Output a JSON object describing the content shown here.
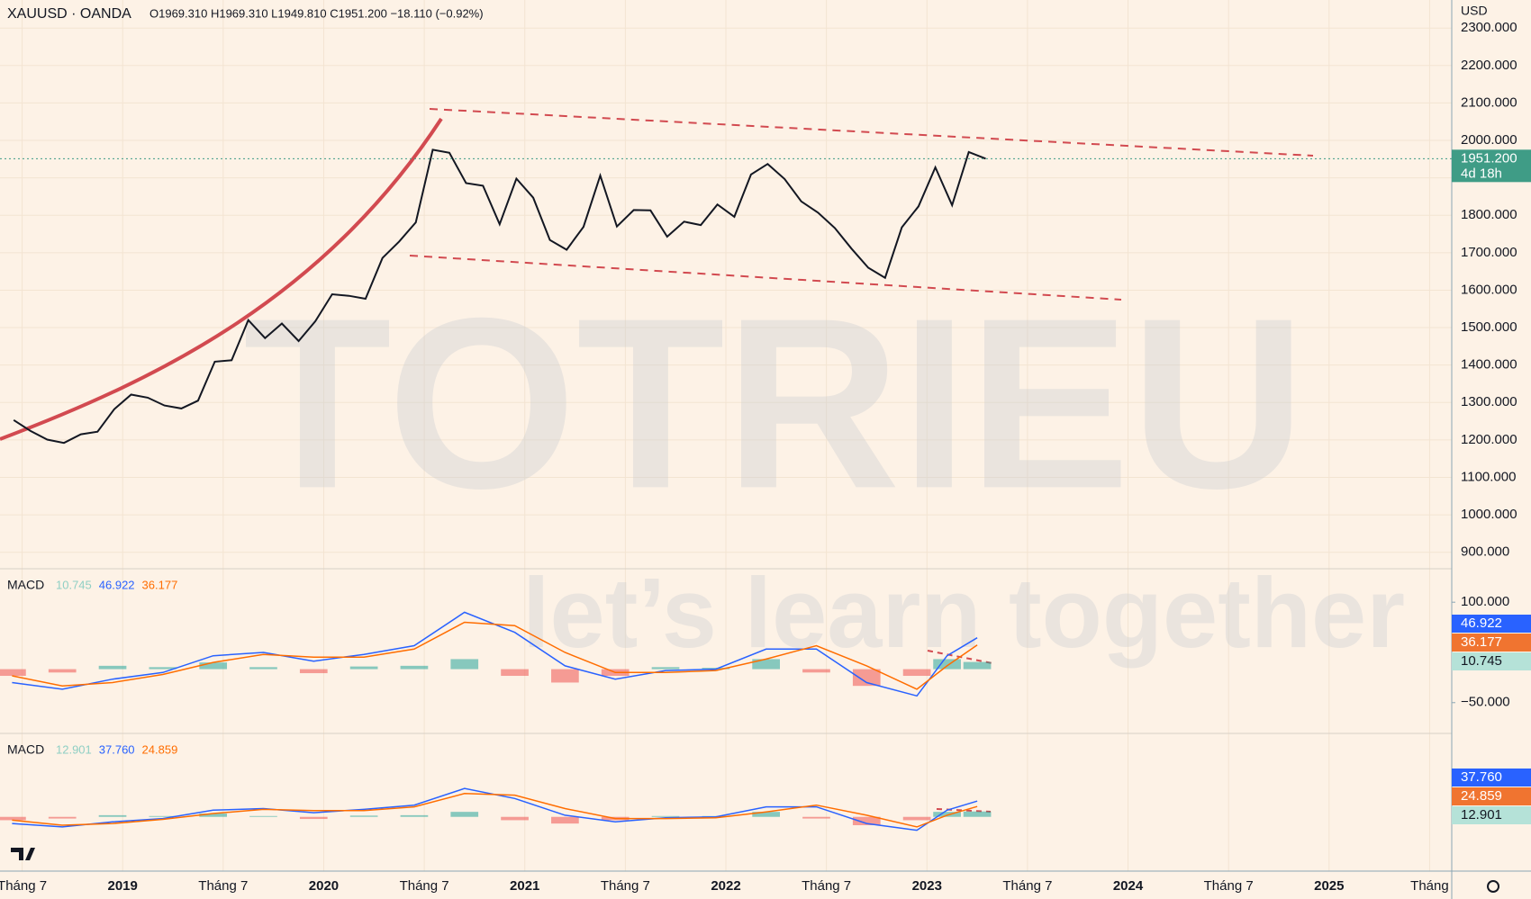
{
  "header": {
    "symbol": "XAUUSD · OANDA",
    "ohlc": "O1969.310 H1969.310 L1949.810 C1951.200 −18.110 (−0.92%)",
    "currency": "USD"
  },
  "watermark": {
    "brand": "TOTRIEU",
    "slogan": "let’s learn together"
  },
  "chart_data": [
    {
      "type": "line",
      "color": "#131722",
      "x": [
        2018.458,
        2018.542,
        2018.625,
        2018.708,
        2018.792,
        2018.875,
        2018.958,
        2019.042,
        2019.125,
        2019.208,
        2019.292,
        2019.375,
        2019.458,
        2019.542,
        2019.625,
        2019.708,
        2019.792,
        2019.875,
        2019.958,
        2020.042,
        2020.125,
        2020.208,
        2020.292,
        2020.375,
        2020.458,
        2020.542,
        2020.625,
        2020.708,
        2020.792,
        2020.875,
        2020.958,
        2021.042,
        2021.125,
        2021.208,
        2021.292,
        2021.375,
        2021.458,
        2021.542,
        2021.625,
        2021.708,
        2021.792,
        2021.875,
        2021.958,
        2022.042,
        2022.125,
        2022.208,
        2022.292,
        2022.375,
        2022.458,
        2022.542,
        2022.625,
        2022.708,
        2022.792,
        2022.875,
        2022.958,
        2023.042,
        2023.125,
        2023.208,
        2023.292
      ],
      "series": [
        {
          "color": "#131722",
          "values": [
            1253,
            1224,
            1201,
            1192,
            1215,
            1222,
            1282,
            1321,
            1313,
            1292,
            1284,
            1305,
            1409,
            1413,
            1520,
            1472,
            1511,
            1464,
            1517,
            1589,
            1585,
            1577,
            1686,
            1730,
            1781,
            1975,
            1967,
            1886,
            1879,
            1776,
            1898,
            1847,
            1734,
            1708,
            1769,
            1906,
            1770,
            1814,
            1813,
            1743,
            1783,
            1774,
            1829,
            1796,
            1909,
            1937,
            1897,
            1837,
            1807,
            1766,
            1711,
            1660,
            1633,
            1768,
            1824,
            1928,
            1827,
            1969,
            1951.2
          ]
        }
      ],
      "xlim": [
        2018.39,
        2025.61
      ],
      "xticks": [
        {
          "value": 2018.5,
          "label": "Tháng 7"
        },
        {
          "value": 2019,
          "label": "2019"
        },
        {
          "value": 2019.5,
          "label": "Tháng 7"
        },
        {
          "value": 2020,
          "label": "2020"
        },
        {
          "value": 2020.5,
          "label": "Tháng 7"
        },
        {
          "value": 2021,
          "label": "2021"
        },
        {
          "value": 2021.5,
          "label": "Tháng 7"
        },
        {
          "value": 2022,
          "label": "2022"
        },
        {
          "value": 2022.5,
          "label": "Tháng 7"
        },
        {
          "value": 2023,
          "label": "2023"
        },
        {
          "value": 2023.5,
          "label": "Tháng 7"
        },
        {
          "value": 2024,
          "label": "2024"
        },
        {
          "value": 2024.5,
          "label": "Tháng 7"
        },
        {
          "value": 2025,
          "label": "2025"
        },
        {
          "value": 2025.5,
          "label": "Tháng"
        }
      ],
      "ylim": [
        856,
        2375
      ],
      "yticks": [
        {
          "value": 900,
          "label": "900.000"
        },
        {
          "value": 1000,
          "label": "1000.000"
        },
        {
          "value": 1100,
          "label": "1100.000"
        },
        {
          "value": 1200,
          "label": "1200.000"
        },
        {
          "value": 1300,
          "label": "1300.000"
        },
        {
          "value": 1400,
          "label": "1400.000"
        },
        {
          "value": 1500,
          "label": "1500.000"
        },
        {
          "value": 1600,
          "label": "1600.000"
        },
        {
          "value": 1700,
          "label": "1700.000"
        },
        {
          "value": 1800,
          "label": "1800.000"
        },
        {
          "value": 1900,
          "label": "1900.000"
        },
        {
          "value": 2000,
          "label": "2000.000"
        },
        {
          "value": 2100,
          "label": "2100.000"
        },
        {
          "value": 2200,
          "label": "2200.000"
        },
        {
          "value": 2300,
          "label": "2300.000"
        }
      ],
      "last_price": {
        "value": 1951.2,
        "label": "1951.200",
        "countdown": "4d 18h",
        "color": "#3f9c86"
      },
      "grid": true
    },
    {
      "type": "macd",
      "title": "MACD",
      "legend_values": [
        "10.745",
        "46.922",
        "36.177"
      ],
      "x": [
        2018.45,
        2018.7,
        2018.95,
        2019.2,
        2019.45,
        2019.7,
        2019.95,
        2020.2,
        2020.45,
        2020.7,
        2020.95,
        2021.2,
        2021.45,
        2021.7,
        2021.95,
        2022.2,
        2022.45,
        2022.7,
        2022.95,
        2023.1,
        2023.25
      ],
      "series": [
        {
          "kind": "histogram",
          "color": "#26a69a",
          "negative_color": "#ef5350",
          "values": [
            -10,
            -5,
            5,
            3,
            10,
            3,
            -6,
            4,
            5,
            15,
            -10,
            -20,
            -10,
            3,
            2,
            15,
            -5,
            -25,
            -10,
            15,
            10.745
          ]
        },
        {
          "kind": "line",
          "color": "#2962ff",
          "values": [
            -20,
            -30,
            -15,
            -5,
            20,
            25,
            12,
            22,
            35,
            85,
            55,
            5,
            -15,
            -2,
            0,
            30,
            30,
            -20,
            -40,
            20,
            46.922
          ]
        },
        {
          "kind": "line",
          "color": "#ff6d00",
          "values": [
            -10,
            -25,
            -20,
            -8,
            10,
            22,
            18,
            18,
            30,
            70,
            65,
            25,
            -5,
            -5,
            -2,
            15,
            35,
            5,
            -30,
            5,
            36.177
          ]
        }
      ],
      "ylim": [
        -96,
        150
      ],
      "yticks": [
        {
          "value": 100,
          "label": "100.000"
        },
        {
          "value": -50,
          "label": "−50.000"
        }
      ]
    },
    {
      "type": "macd",
      "title": "MACD",
      "legend_values": [
        "12.901",
        "37.760",
        "24.859"
      ],
      "x": [
        2018.45,
        2018.7,
        2018.95,
        2019.2,
        2019.45,
        2019.7,
        2019.95,
        2020.2,
        2020.45,
        2020.7,
        2020.95,
        2021.2,
        2021.45,
        2021.7,
        2021.95,
        2022.2,
        2022.45,
        2022.7,
        2022.95,
        2023.1,
        2023.25
      ],
      "series": [
        {
          "kind": "histogram",
          "color": "#26a69a",
          "negative_color": "#ef5350",
          "values": [
            -8,
            -4,
            4,
            2,
            8,
            2,
            -5,
            3,
            4,
            12,
            -8,
            -16,
            -8,
            2,
            2,
            12,
            -4,
            -20,
            -8,
            12,
            12.901
          ]
        },
        {
          "kind": "line",
          "color": "#2962ff",
          "values": [
            -16,
            -24,
            -12,
            -4,
            16,
            20,
            10,
            18,
            28,
            68,
            44,
            4,
            -12,
            -2,
            0,
            24,
            24,
            -16,
            -32,
            16,
            37.76
          ]
        },
        {
          "kind": "line",
          "color": "#ff6d00",
          "values": [
            -8,
            -20,
            -16,
            -6,
            8,
            18,
            15,
            15,
            24,
            56,
            52,
            20,
            -4,
            -4,
            -2,
            12,
            28,
            4,
            -24,
            4,
            24.859
          ]
        }
      ],
      "ylim": [
        -130,
        200
      ]
    }
  ]
}
